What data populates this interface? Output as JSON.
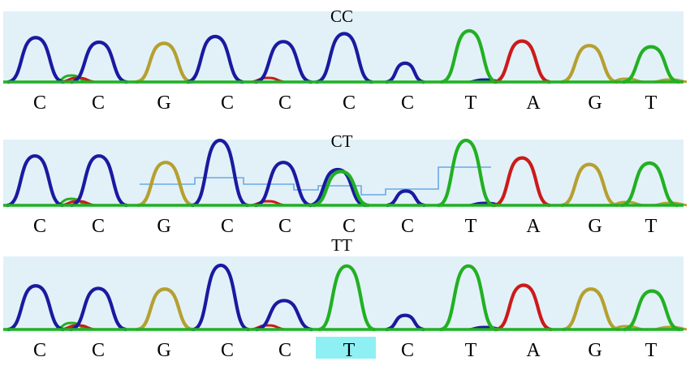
{
  "colors": {
    "C": "#1a1aa0",
    "G": "#b5a030",
    "T": "#22b022",
    "A": "#cc1a1a",
    "background": "#e2f1f8",
    "highlight": "#8ff0f4",
    "trace_line": "#6aa8e8"
  },
  "panels": [
    {
      "title": "CC",
      "bases": [
        "C",
        "C",
        "G",
        "C",
        "C",
        "C",
        "C",
        "T",
        "A",
        "G",
        "T"
      ],
      "peaks": [
        {
          "base": "C",
          "height": 0.78
        },
        {
          "base": "C",
          "height": 0.7
        },
        {
          "base": "G",
          "height": 0.68
        },
        {
          "base": "C",
          "height": 0.8
        },
        {
          "base": "C",
          "height": 0.71
        },
        {
          "base": "C",
          "height": 0.85
        },
        {
          "base": "C",
          "height": 0.33
        },
        {
          "base": "T",
          "height": 0.9
        },
        {
          "base": "A",
          "height": 0.72
        },
        {
          "base": "G",
          "height": 0.64
        },
        {
          "base": "T",
          "height": 0.62
        }
      ],
      "highlight_index": null
    },
    {
      "title": "CT",
      "bases": [
        "C",
        "C",
        "G",
        "C",
        "C",
        "C",
        "C",
        "T",
        "A",
        "G",
        "T"
      ],
      "peaks": [
        {
          "base": "C",
          "height": 0.76
        },
        {
          "base": "C",
          "height": 0.76
        },
        {
          "base": "G",
          "height": 0.66
        },
        {
          "base": "C",
          "height": 1.0
        },
        {
          "base": "C",
          "height": 0.66
        },
        {
          "base": "C",
          "height": 0.55
        },
        {
          "base": "T",
          "height": 0.52
        },
        {
          "base": "C",
          "height": 0.22
        },
        {
          "base": "T",
          "height": 1.0
        },
        {
          "base": "A",
          "height": 0.73
        },
        {
          "base": "G",
          "height": 0.63
        },
        {
          "base": "T",
          "height": 0.65
        }
      ],
      "highlight_index": null
    },
    {
      "title": "TT",
      "bases": [
        "C",
        "C",
        "G",
        "C",
        "C",
        "T",
        "C",
        "T",
        "A",
        "G",
        "T"
      ],
      "peaks": [
        {
          "base": "C",
          "height": 0.68
        },
        {
          "base": "C",
          "height": 0.64
        },
        {
          "base": "G",
          "height": 0.63
        },
        {
          "base": "C",
          "height": 1.0
        },
        {
          "base": "C",
          "height": 0.45
        },
        {
          "base": "T",
          "height": 0.99
        },
        {
          "base": "C",
          "height": 0.22
        },
        {
          "base": "T",
          "height": 0.99
        },
        {
          "base": "A",
          "height": 0.69
        },
        {
          "base": "G",
          "height": 0.63
        },
        {
          "base": "T",
          "height": 0.6
        }
      ],
      "highlight_index": 5
    }
  ]
}
